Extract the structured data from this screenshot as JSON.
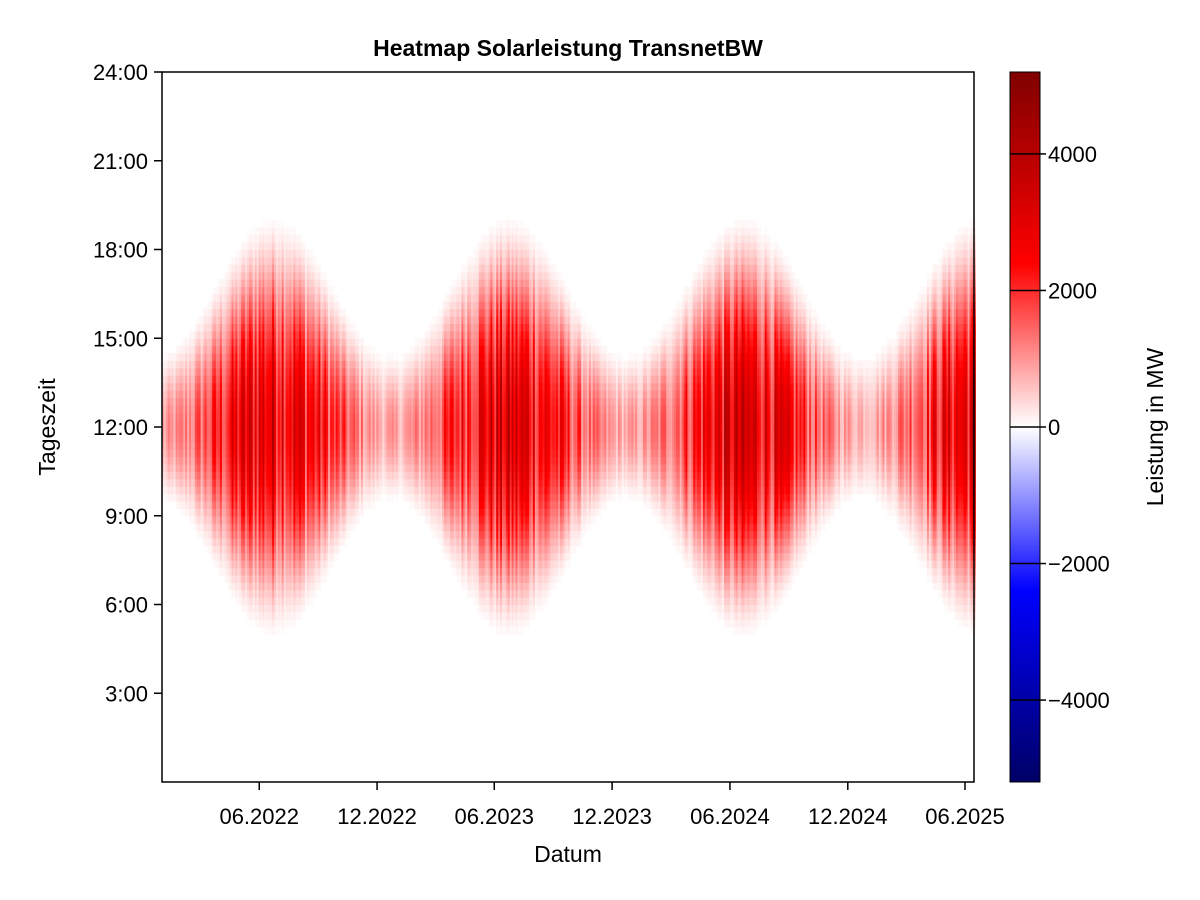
{
  "chart_data": {
    "type": "heatmap",
    "title": "Heatmap Solarleistung TransnetBW",
    "xlabel": "Datum",
    "ylabel": "Tageszeit",
    "x_range": [
      "2022-01-01",
      "2025-06-15"
    ],
    "x_ticks": [
      {
        "date": "2022-06-01",
        "label": "06.2022"
      },
      {
        "date": "2022-12-01",
        "label": "12.2022"
      },
      {
        "date": "2023-06-01",
        "label": "06.2023"
      },
      {
        "date": "2023-12-01",
        "label": "12.2023"
      },
      {
        "date": "2024-06-01",
        "label": "06.2024"
      },
      {
        "date": "2024-12-01",
        "label": "12.2024"
      },
      {
        "date": "2025-06-01",
        "label": "06.2025"
      }
    ],
    "y_range_hours": [
      0,
      24
    ],
    "y_ticks": [
      {
        "hour": 3,
        "label": "3:00"
      },
      {
        "hour": 6,
        "label": "6:00"
      },
      {
        "hour": 9,
        "label": "9:00"
      },
      {
        "hour": 12,
        "label": "12:00"
      },
      {
        "hour": 15,
        "label": "15:00"
      },
      {
        "hour": 18,
        "label": "18:00"
      },
      {
        "hour": 21,
        "label": "21:00"
      },
      {
        "hour": 24,
        "label": "24:00"
      }
    ],
    "colorbar": {
      "label": "Leistung in MW",
      "range": [
        -5200,
        5200
      ],
      "ticks": [
        {
          "value": 4000,
          "label": "4000"
        },
        {
          "value": 2000,
          "label": "2000"
        },
        {
          "value": 0,
          "label": "0"
        },
        {
          "value": -2000,
          "label": "−2000"
        },
        {
          "value": -4000,
          "label": "−4000"
        }
      ],
      "colors": [
        "#000066",
        "#0000ff",
        "#ffffff",
        "#ff0000",
        "#800000"
      ]
    },
    "grid": false,
    "approx_profile": {
      "noon_hour": 12.0,
      "daylight_half_width_hours_winter": 2.6,
      "daylight_half_width_hours_summer": 7.3,
      "peak_power_winter_mw": 1200,
      "peak_power_summer_mw": 4500,
      "summer_solstice_doy": 172
    }
  }
}
